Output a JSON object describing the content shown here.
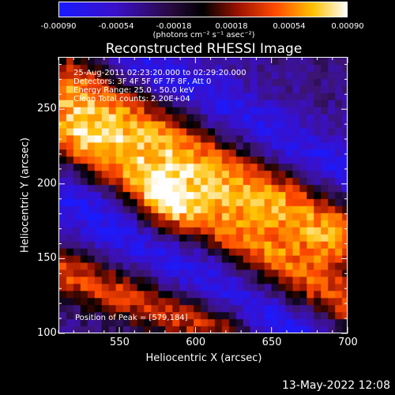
{
  "colorbar": {
    "ticks": [
      "-0.00090",
      "-0.00054",
      "-0.00018",
      "0.00018",
      "0.00054",
      "0.00090"
    ],
    "units": "(photons cm⁻² s⁻¹ asec⁻²)",
    "range": [
      -0.0009,
      0.0009
    ],
    "colors": [
      "#1a1aff",
      "#4a0f8f",
      "#000000",
      "#c01800",
      "#ff7a00",
      "#ffffff"
    ]
  },
  "info": {
    "line1": "25-Aug-2011 02:23:20.000 to 02:29:20.000",
    "line2": "Detectors: 3F 4F 5F 6F 7F 8F, Att 0",
    "line3": "Energy Range: 25.0 - 50.0 keV",
    "line4": "Clean    Total counts: 2.20E+04",
    "peak": "Position of Peak = [579,184]"
  },
  "footer": {
    "timestamp": "13-May-2022 12:08"
  },
  "chart_data": {
    "type": "heatmap",
    "title": "Reconstructed RHESSI Image",
    "xlabel": "Heliocentric X (arcsec)",
    "ylabel": "Heliocentric Y (arcsec)",
    "xlim": [
      510,
      700
    ],
    "ylim": [
      100,
      285
    ],
    "x_ticks": [
      "550",
      "600",
      "650",
      "700"
    ],
    "y_ticks": [
      "100",
      "150",
      "200",
      "250"
    ],
    "peak": [
      579,
      184
    ],
    "ridges": [
      {
        "x0": 515,
        "y0": 262,
        "x1": 690,
        "y1": 168,
        "width": 18
      },
      {
        "x0": 520,
        "y0": 227,
        "x1": 700,
        "y1": 118,
        "width": 14
      },
      {
        "x0": 515,
        "y0": 140,
        "x1": 620,
        "y1": 100,
        "width": 12
      }
    ],
    "troughs": [
      {
        "x0": 510,
        "y0": 195,
        "x1": 700,
        "y1": 80,
        "width": 16
      },
      {
        "x0": 560,
        "y0": 285,
        "x1": 700,
        "y1": 205,
        "width": 14
      }
    ]
  }
}
